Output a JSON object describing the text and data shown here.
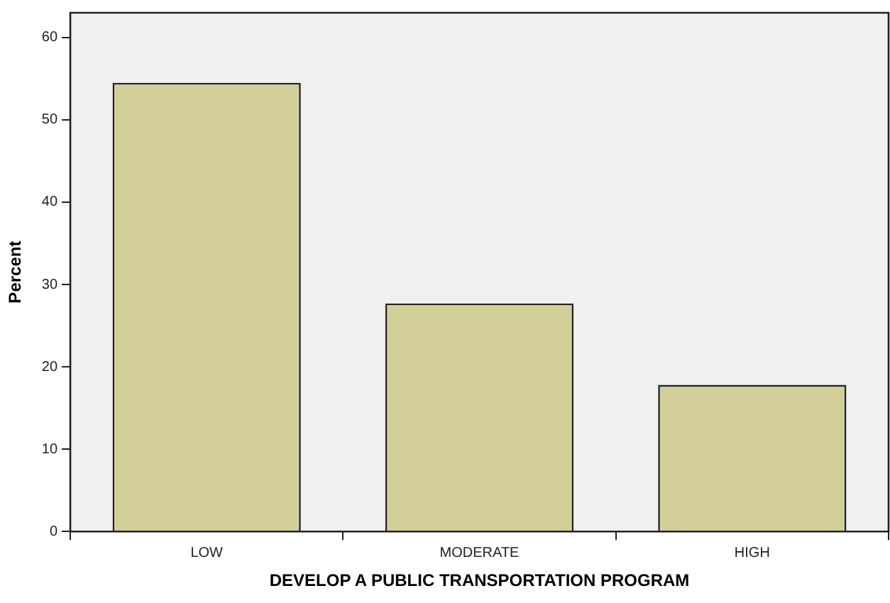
{
  "chart_data": {
    "type": "bar",
    "xlabel": "DEVELOP A PUBLIC TRANSPORTATION PROGRAM",
    "ylabel": "Percent",
    "categories": [
      "LOW",
      "MODERATE",
      "HIGH"
    ],
    "values": [
      54.5,
      27.7,
      17.8
    ],
    "color": "#d3cf99",
    "ylim": [
      0,
      63
    ],
    "yticks": [
      0,
      10,
      20,
      30,
      40,
      50,
      60
    ],
    "grid": false,
    "legend": false
  }
}
